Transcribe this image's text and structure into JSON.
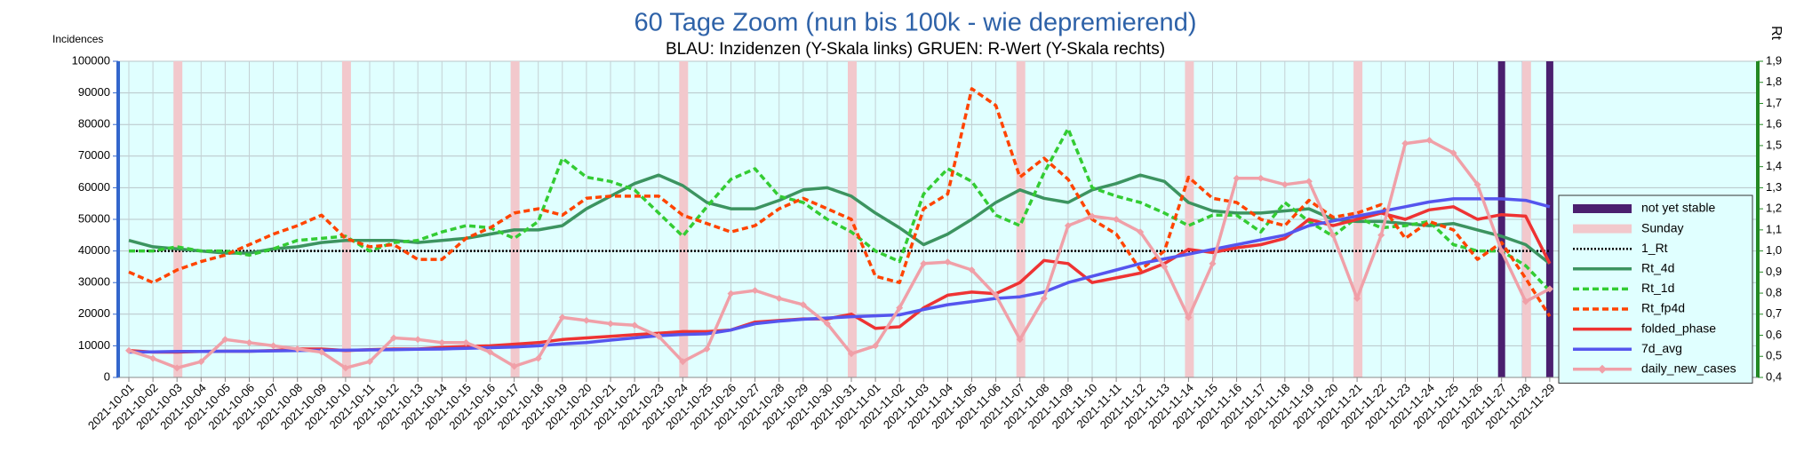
{
  "chart_data": {
    "type": "line",
    "title": "60 Tage Zoom  (nun bis 100k - wie depremierend)",
    "subtitle": "BLAU: Inzidenzen (Y-Skala links)     GRUEN: R-Wert (Y-Skala rechts)",
    "ylabel": "Incidences",
    "y2label": "Rt",
    "categories": [
      "2021-10-01",
      "2021-10-02",
      "2021-10-03",
      "2021-10-04",
      "2021-10-05",
      "2021-10-06",
      "2021-10-07",
      "2021-10-08",
      "2021-10-09",
      "2021-10-10",
      "2021-10-11",
      "2021-10-12",
      "2021-10-13",
      "2021-10-14",
      "2021-10-15",
      "2021-10-16",
      "2021-10-17",
      "2021-10-18",
      "2021-10-19",
      "2021-10-20",
      "2021-10-21",
      "2021-10-22",
      "2021-10-23",
      "2021-10-24",
      "2021-10-25",
      "2021-10-26",
      "2021-10-27",
      "2021-10-28",
      "2021-10-29",
      "2021-10-30",
      "2021-10-31",
      "2021-11-01",
      "2021-11-02",
      "2021-11-03",
      "2021-11-04",
      "2021-11-05",
      "2021-11-06",
      "2021-11-07",
      "2021-11-08",
      "2021-11-09",
      "2021-11-10",
      "2021-11-11",
      "2021-11-12",
      "2021-11-13",
      "2021-11-14",
      "2021-11-15",
      "2021-11-16",
      "2021-11-17",
      "2021-11-18",
      "2021-11-19",
      "2021-11-20",
      "2021-11-21",
      "2021-11-22",
      "2021-11-23",
      "2021-11-24",
      "2021-11-25",
      "2021-11-26",
      "2021-11-27",
      "2021-11-28",
      "2021-11-29"
    ],
    "ylim": [
      0,
      100000
    ],
    "yticks": [
      0,
      10000,
      20000,
      30000,
      40000,
      50000,
      60000,
      70000,
      80000,
      90000,
      100000
    ],
    "y2lim": [
      0.4,
      1.9
    ],
    "y2ticks": [
      {
        "value": 0.4,
        "label": "0,4"
      },
      {
        "value": 0.5,
        "label": "0,5"
      },
      {
        "value": 0.6,
        "label": "0,6"
      },
      {
        "value": 0.7,
        "label": "0,7"
      },
      {
        "value": 0.8,
        "label": "0,8"
      },
      {
        "value": 0.9,
        "label": "0,9"
      },
      {
        "value": 1.0,
        "label": "1,0"
      },
      {
        "value": 1.1,
        "label": "1,1"
      },
      {
        "value": 1.2,
        "label": "1,2"
      },
      {
        "value": 1.3,
        "label": "1,3"
      },
      {
        "value": 1.4,
        "label": "1,4"
      },
      {
        "value": 1.5,
        "label": "1,5"
      },
      {
        "value": 1.6,
        "label": "1,6"
      },
      {
        "value": 1.7,
        "label": "1,7"
      },
      {
        "value": 1.8,
        "label": "1,8"
      },
      {
        "value": 1.9,
        "label": "1,9"
      }
    ],
    "grid": true,
    "legend": "right",
    "series": [
      {
        "name": "not yet stable",
        "type": "bar",
        "color": "#4b1f6f",
        "values": [
          null,
          null,
          null,
          null,
          null,
          null,
          null,
          null,
          null,
          null,
          null,
          null,
          null,
          null,
          null,
          null,
          null,
          null,
          null,
          null,
          null,
          null,
          null,
          null,
          null,
          null,
          null,
          null,
          null,
          null,
          null,
          null,
          null,
          null,
          null,
          null,
          null,
          null,
          null,
          null,
          null,
          null,
          null,
          null,
          null,
          null,
          null,
          null,
          null,
          null,
          null,
          null,
          null,
          null,
          null,
          null,
          null,
          100000,
          100000,
          100000
        ]
      },
      {
        "name": "Sunday",
        "type": "bar",
        "color": "#f2c8cc",
        "values": [
          null,
          null,
          100000,
          null,
          null,
          null,
          null,
          null,
          null,
          100000,
          null,
          null,
          null,
          null,
          null,
          null,
          100000,
          null,
          null,
          null,
          null,
          null,
          null,
          100000,
          null,
          null,
          null,
          null,
          null,
          null,
          100000,
          null,
          null,
          null,
          null,
          null,
          null,
          100000,
          null,
          null,
          null,
          null,
          null,
          null,
          100000,
          null,
          null,
          null,
          null,
          null,
          null,
          100000,
          null,
          null,
          null,
          null,
          null,
          null,
          100000,
          null
        ]
      },
      {
        "name": "1_Rt",
        "type": "line",
        "axis": "y2",
        "color": "#000000",
        "dash": "dotted",
        "values": [
          1,
          1,
          1,
          1,
          1,
          1,
          1,
          1,
          1,
          1,
          1,
          1,
          1,
          1,
          1,
          1,
          1,
          1,
          1,
          1,
          1,
          1,
          1,
          1,
          1,
          1,
          1,
          1,
          1,
          1,
          1,
          1,
          1,
          1,
          1,
          1,
          1,
          1,
          1,
          1,
          1,
          1,
          1,
          1,
          1,
          1,
          1,
          1,
          1,
          1,
          1,
          1,
          1,
          1,
          1,
          1,
          1,
          1,
          1,
          1
        ]
      },
      {
        "name": "Rt_4d",
        "type": "line",
        "axis": "y2",
        "color": "#3c9460",
        "values": [
          1.05,
          1.02,
          1.01,
          1.0,
          0.99,
          0.99,
          1.01,
          1.02,
          1.04,
          1.05,
          1.05,
          1.05,
          1.04,
          1.05,
          1.06,
          1.08,
          1.1,
          1.1,
          1.12,
          1.2,
          1.26,
          1.32,
          1.36,
          1.31,
          1.23,
          1.2,
          1.2,
          1.24,
          1.29,
          1.3,
          1.26,
          1.18,
          1.11,
          1.03,
          1.08,
          1.15,
          1.23,
          1.29,
          1.25,
          1.23,
          1.29,
          1.32,
          1.36,
          1.33,
          1.23,
          1.19,
          1.18,
          1.18,
          1.19,
          1.2,
          1.15,
          1.14,
          1.14,
          1.13,
          1.12,
          1.13,
          1.1,
          1.07,
          1.03,
          0.94
        ]
      },
      {
        "name": "Rt_1d",
        "type": "line",
        "axis": "y2",
        "color": "#33cc33",
        "dash": "dashed",
        "values": [
          1.0,
          1.0,
          1.02,
          1.0,
          1.0,
          0.98,
          1.01,
          1.05,
          1.06,
          1.07,
          1.0,
          1.04,
          1.05,
          1.09,
          1.12,
          1.11,
          1.06,
          1.14,
          1.44,
          1.35,
          1.33,
          1.29,
          1.18,
          1.07,
          1.21,
          1.34,
          1.39,
          1.26,
          1.23,
          1.15,
          1.09,
          1.0,
          0.95,
          1.27,
          1.39,
          1.33,
          1.17,
          1.12,
          1.37,
          1.58,
          1.3,
          1.26,
          1.23,
          1.18,
          1.12,
          1.17,
          1.17,
          1.09,
          1.23,
          1.14,
          1.07,
          1.16,
          1.11,
          1.12,
          1.14,
          1.03,
          1.0,
          1.0,
          0.93,
          0.81
        ]
      },
      {
        "name": "Rt_fp4d",
        "type": "line",
        "axis": "y2",
        "color": "#ff4400",
        "dash": "dashed",
        "values": [
          0.9,
          0.85,
          0.91,
          0.95,
          0.98,
          1.03,
          1.08,
          1.12,
          1.17,
          1.06,
          1.02,
          1.03,
          0.96,
          0.96,
          1.06,
          1.11,
          1.18,
          1.2,
          1.17,
          1.25,
          1.26,
          1.26,
          1.26,
          1.17,
          1.13,
          1.09,
          1.12,
          1.2,
          1.25,
          1.2,
          1.15,
          0.88,
          0.85,
          1.2,
          1.27,
          1.77,
          1.69,
          1.35,
          1.44,
          1.34,
          1.15,
          1.08,
          0.91,
          1.0,
          1.35,
          1.25,
          1.23,
          1.15,
          1.12,
          1.24,
          1.16,
          1.18,
          1.22,
          1.06,
          1.14,
          1.1,
          0.96,
          1.04,
          0.87,
          0.69
        ]
      },
      {
        "name": "folded_phase",
        "type": "line",
        "color": "#ee3333",
        "values": [
          8500,
          8000,
          8000,
          8200,
          8300,
          8300,
          8500,
          9000,
          9000,
          8500,
          8800,
          9000,
          9000,
          9500,
          9800,
          10000,
          10500,
          11000,
          12000,
          12500,
          13000,
          13500,
          14000,
          14500,
          14500,
          15000,
          17500,
          18000,
          18500,
          18500,
          20000,
          15500,
          16000,
          22000,
          26000,
          27000,
          26500,
          30000,
          37000,
          36000,
          30000,
          31500,
          33000,
          36000,
          40500,
          39500,
          41000,
          42000,
          44000,
          50000,
          48000,
          50000,
          52000,
          50000,
          53000,
          54000,
          50000,
          51500,
          51000,
          36000
        ]
      },
      {
        "name": "7d_avg",
        "type": "line",
        "color": "#5555ee",
        "values": [
          8000,
          8100,
          8200,
          8200,
          8300,
          8300,
          8400,
          8500,
          8600,
          8600,
          8700,
          8800,
          8900,
          9000,
          9200,
          9400,
          9600,
          10000,
          10600,
          11000,
          11800,
          12500,
          13200,
          13600,
          13800,
          15000,
          17000,
          17800,
          18400,
          18800,
          19200,
          19500,
          19800,
          21500,
          23000,
          24000,
          25000,
          25500,
          27000,
          30000,
          32000,
          34000,
          36000,
          37500,
          39000,
          40500,
          42000,
          43500,
          45000,
          48000,
          49500,
          51000,
          52500,
          54000,
          55500,
          56500,
          56500,
          56500,
          56000,
          54000
        ]
      },
      {
        "name": "daily_new_cases",
        "type": "line",
        "color": "#f0a0a8",
        "marker": "diamond",
        "values": [
          8500,
          6000,
          3000,
          5000,
          12000,
          11000,
          10000,
          9000,
          8000,
          3000,
          5000,
          12500,
          12000,
          11000,
          11000,
          8000,
          3500,
          6000,
          19000,
          18000,
          17000,
          16500,
          13000,
          5000,
          9000,
          26500,
          27500,
          25000,
          23000,
          17000,
          7500,
          10000,
          22000,
          36000,
          36500,
          34000,
          26000,
          12000,
          25000,
          48000,
          51000,
          50000,
          46000,
          35000,
          19000,
          36000,
          63000,
          63000,
          61000,
          62000,
          45000,
          25000,
          45000,
          74000,
          75000,
          71000,
          61000,
          40000,
          24000,
          28000
        ]
      }
    ]
  }
}
